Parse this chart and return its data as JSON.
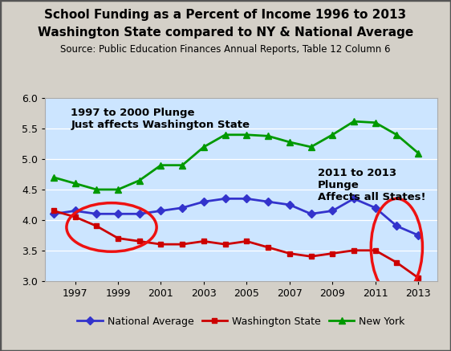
{
  "title_line1": "School Funding as a Percent of Income 1996 to 2013",
  "title_line2": "Washington State compared to NY & National Average",
  "subtitle": "Source: Public Education Finances Annual Reports, Table 12 Column 6",
  "years": [
    1996,
    1997,
    1998,
    1999,
    2000,
    2001,
    2002,
    2003,
    2004,
    2005,
    2006,
    2007,
    2008,
    2009,
    2010,
    2011,
    2012,
    2013
  ],
  "national_avg": [
    4.1,
    4.15,
    4.1,
    4.1,
    4.1,
    4.15,
    4.2,
    4.3,
    4.35,
    4.35,
    4.3,
    4.25,
    4.1,
    4.15,
    4.35,
    4.2,
    3.9,
    3.75
  ],
  "washington": [
    4.15,
    4.05,
    3.9,
    3.7,
    3.65,
    3.6,
    3.6,
    3.65,
    3.6,
    3.65,
    3.55,
    3.45,
    3.4,
    3.45,
    3.5,
    3.5,
    3.3,
    3.05
  ],
  "new_york": [
    4.7,
    4.6,
    4.5,
    4.5,
    4.65,
    4.9,
    4.9,
    5.2,
    5.4,
    5.4,
    5.38,
    5.28,
    5.2,
    5.4,
    5.62,
    5.6,
    5.4,
    5.1
  ],
  "national_color": "#3333cc",
  "washington_color": "#cc0000",
  "new_york_color": "#009900",
  "plot_bg_color": "#cce5ff",
  "fig_bg_color": "#d4d0c8",
  "annotation1": "1997 to 2000 Plunge\nJust affects Washington State",
  "annotation2": "2011 to 2013\nPlunge\nAffects all States!",
  "ylim": [
    3.0,
    6.0
  ],
  "yticks": [
    3.0,
    3.5,
    4.0,
    4.5,
    5.0,
    5.5,
    6.0
  ],
  "xticks": [
    1997,
    1999,
    2001,
    2003,
    2005,
    2007,
    2009,
    2011,
    2013
  ],
  "ellipse_color": "#ee1111"
}
